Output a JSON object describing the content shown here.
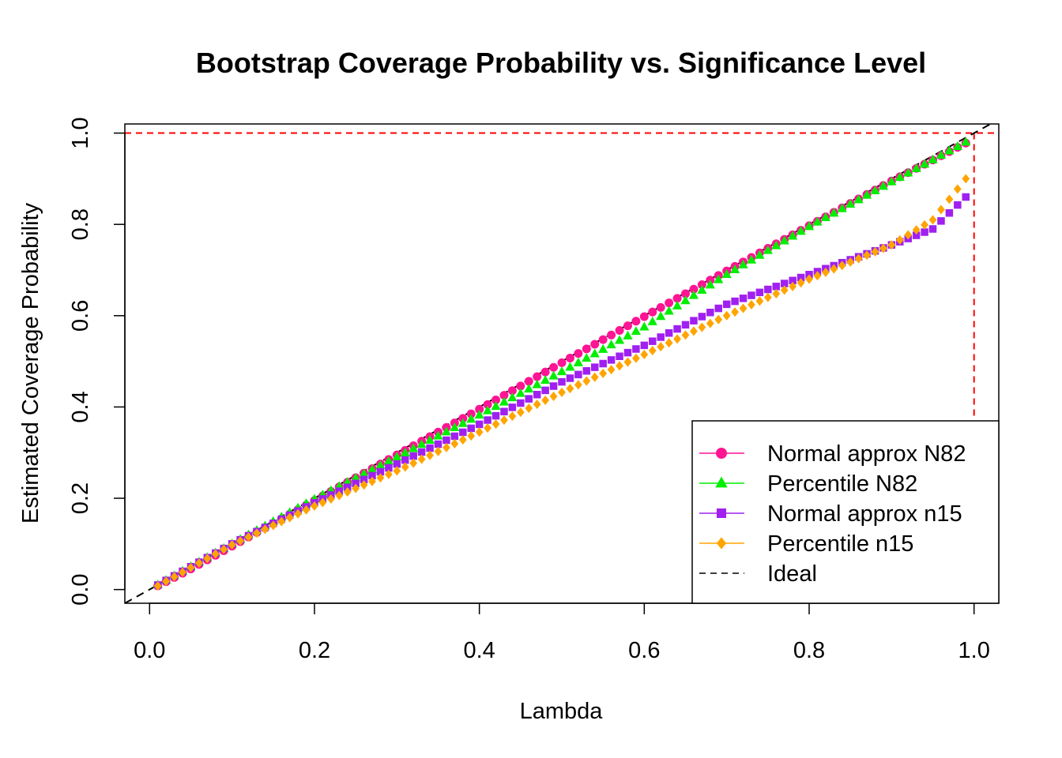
{
  "chart_data": {
    "type": "scatter",
    "title": "Bootstrap Coverage Probability vs. Significance Level",
    "xlabel": "Lambda",
    "ylabel": "Estimated Coverage Probability",
    "xlim": [
      -0.03,
      1.03
    ],
    "ylim": [
      -0.03,
      1.02
    ],
    "x_ticks": [
      "0.0",
      "0.2",
      "0.4",
      "0.6",
      "0.8",
      "1.0"
    ],
    "y_ticks": [
      "0.0",
      "0.2",
      "0.4",
      "0.6",
      "0.8",
      "1.0"
    ],
    "grid": false,
    "legend_position": "bottom-right",
    "x": {
      "start": 0.01,
      "end": 0.99,
      "step": 0.01
    },
    "series": [
      {
        "name": "Normal approx N82",
        "color": "#ff1493",
        "marker": "circle",
        "knots": [
          [
            0.01,
            0.008
          ],
          [
            0.05,
            0.045
          ],
          [
            0.1,
            0.095
          ],
          [
            0.2,
            0.195
          ],
          [
            0.3,
            0.295
          ],
          [
            0.4,
            0.395
          ],
          [
            0.5,
            0.497
          ],
          [
            0.6,
            0.598
          ],
          [
            0.7,
            0.698
          ],
          [
            0.8,
            0.797
          ],
          [
            0.9,
            0.895
          ],
          [
            0.99,
            0.978
          ]
        ]
      },
      {
        "name": "Percentile N82",
        "color": "#00ee00",
        "marker": "triangle",
        "knots": [
          [
            0.01,
            0.01
          ],
          [
            0.05,
            0.05
          ],
          [
            0.1,
            0.1
          ],
          [
            0.2,
            0.198
          ],
          [
            0.3,
            0.29
          ],
          [
            0.4,
            0.382
          ],
          [
            0.5,
            0.477
          ],
          [
            0.6,
            0.575
          ],
          [
            0.7,
            0.69
          ],
          [
            0.8,
            0.795
          ],
          [
            0.9,
            0.893
          ],
          [
            0.99,
            0.98
          ]
        ]
      },
      {
        "name": "Normal approx n15",
        "color": "#a020f0",
        "marker": "square",
        "knots": [
          [
            0.01,
            0.01
          ],
          [
            0.05,
            0.05
          ],
          [
            0.1,
            0.1
          ],
          [
            0.2,
            0.19
          ],
          [
            0.3,
            0.275
          ],
          [
            0.4,
            0.362
          ],
          [
            0.5,
            0.455
          ],
          [
            0.6,
            0.535
          ],
          [
            0.7,
            0.625
          ],
          [
            0.8,
            0.69
          ],
          [
            0.9,
            0.755
          ],
          [
            0.95,
            0.79
          ],
          [
            0.99,
            0.86
          ]
        ]
      },
      {
        "name": "Percentile n15",
        "color": "#ffa500",
        "marker": "diamond",
        "knots": [
          [
            0.01,
            0.008
          ],
          [
            0.05,
            0.048
          ],
          [
            0.1,
            0.098
          ],
          [
            0.2,
            0.183
          ],
          [
            0.3,
            0.26
          ],
          [
            0.4,
            0.345
          ],
          [
            0.5,
            0.432
          ],
          [
            0.6,
            0.515
          ],
          [
            0.7,
            0.6
          ],
          [
            0.8,
            0.68
          ],
          [
            0.9,
            0.755
          ],
          [
            0.95,
            0.81
          ],
          [
            0.99,
            0.9
          ]
        ]
      }
    ],
    "ideal": {
      "name": "Ideal",
      "color": "#000000",
      "style": "dashed",
      "from": [
        -0.03,
        -0.03
      ],
      "to": [
        1.03,
        1.03
      ]
    },
    "reference_lines": [
      {
        "axis": "y",
        "value": 1.0,
        "color": "#ff0000",
        "style": "dashed"
      },
      {
        "axis": "x",
        "value": 1.0,
        "color": "#ff0000",
        "style": "dashed"
      }
    ]
  }
}
